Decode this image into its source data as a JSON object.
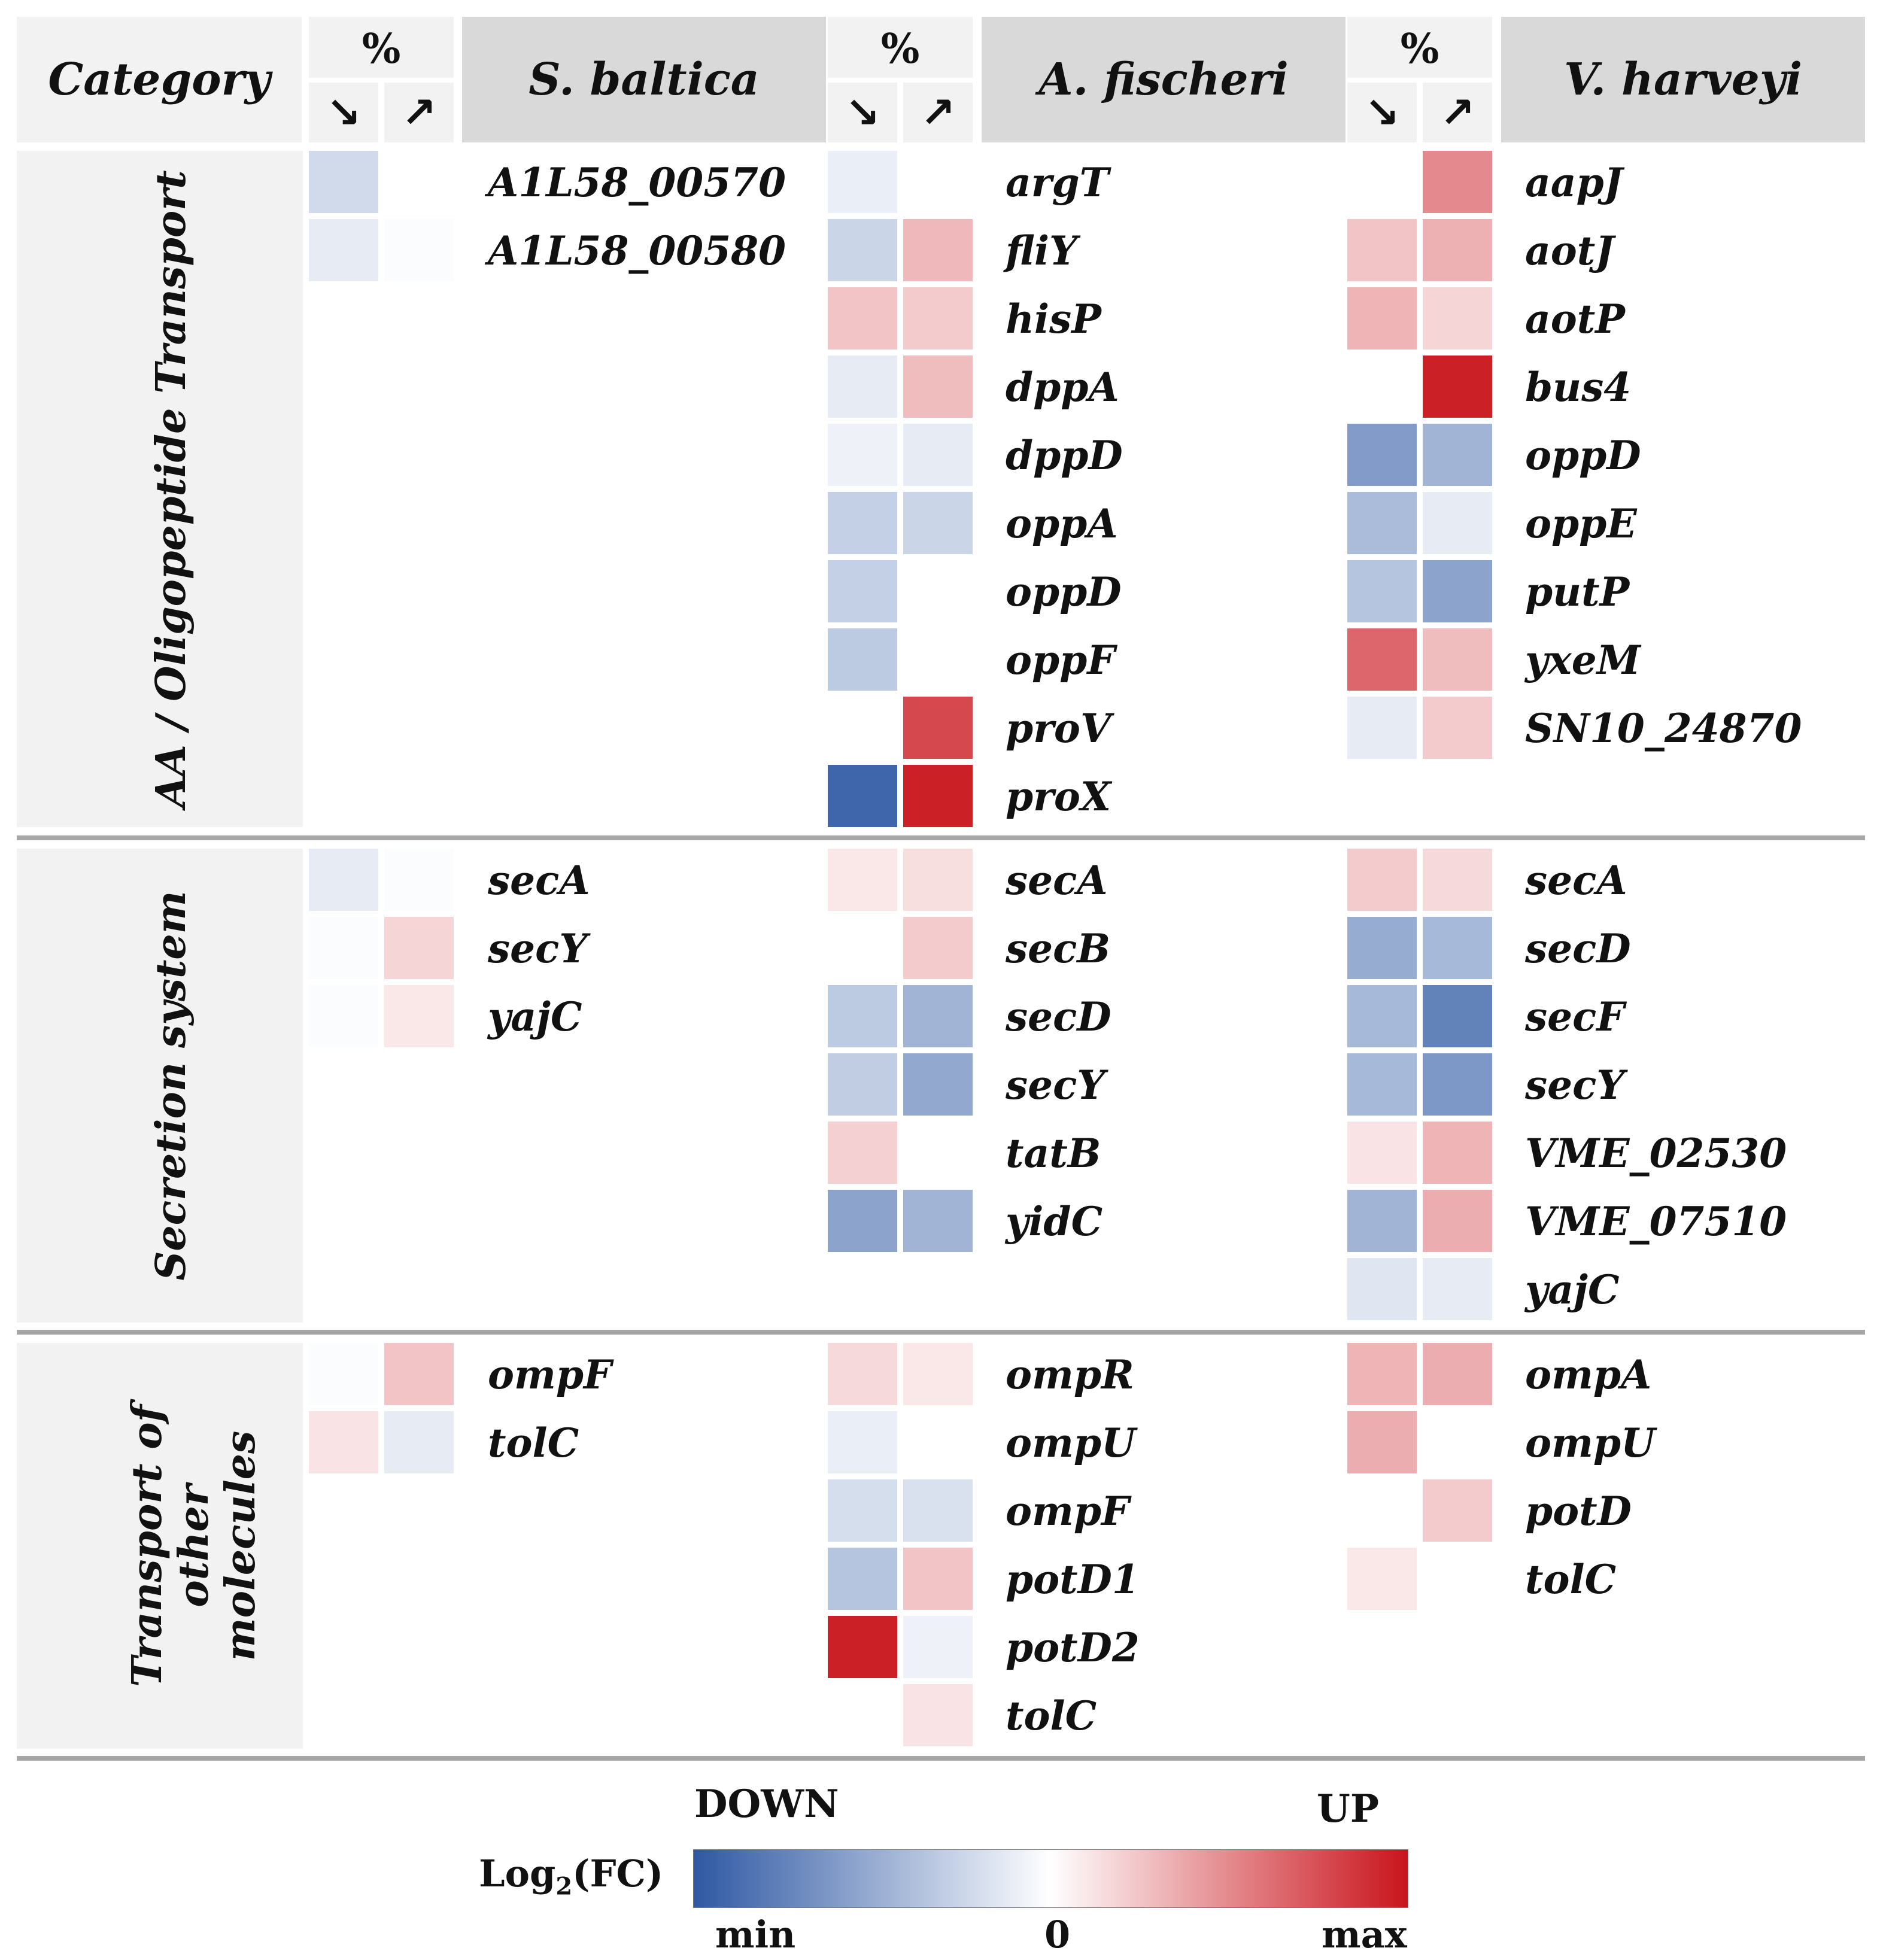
{
  "header": {
    "category": "Category",
    "pct": "%",
    "down_arrow": "↘",
    "up_arrow": "↗",
    "species": [
      "S. baltica",
      "A. fischeri",
      "V. harveyi"
    ]
  },
  "colors": {
    "down_max": "#2e58a3",
    "zero": "#ffffff",
    "up_max": "#c9141c",
    "header_species_bg": "#d9d9d9",
    "panel_bg": "#f2f2f2",
    "separator": "#a6a6a6"
  },
  "legend": {
    "title_prefix": "Log",
    "title_sub": "2",
    "title_suffix": "(FC)",
    "down": "DOWN",
    "up": "UP",
    "min": "min",
    "zero": "0",
    "max": "max"
  },
  "chart_data": {
    "type": "heatmap",
    "value_scale": "normalized log2 fold change, -1 = min (down), 0 = no change, 1 = max (up)",
    "columns_per_species": [
      "↘",
      "↗"
    ],
    "categories": [
      {
        "name": "AA / Oligopeptide Transport",
        "species": [
          {
            "name": "S. baltica",
            "genes": [
              {
                "gene": "A1L58_00570",
                "down": -0.22,
                "up": 0.0
              },
              {
                "gene": "A1L58_00580",
                "down": -0.12,
                "up": -0.02
              }
            ]
          },
          {
            "name": "A. fischeri",
            "genes": [
              {
                "gene": "argT",
                "down": -0.1,
                "up": 0.0
              },
              {
                "gene": "fliY",
                "down": -0.25,
                "up": 0.3
              },
              {
                "gene": "hisP",
                "down": 0.25,
                "up": 0.22
              },
              {
                "gene": "dppA",
                "down": -0.12,
                "up": 0.28
              },
              {
                "gene": "dppD",
                "down": -0.08,
                "up": -0.12
              },
              {
                "gene": "oppA",
                "down": -0.28,
                "up": -0.25
              },
              {
                "gene": "oppD",
                "down": -0.28,
                "up": 0.0
              },
              {
                "gene": "oppF",
                "down": -0.32,
                "up": 0.0
              },
              {
                "gene": "proV",
                "down": 0.0,
                "up": 0.78
              },
              {
                "gene": "proX",
                "down": -0.92,
                "up": 0.95
              }
            ]
          },
          {
            "name": "V. harveyi",
            "genes": [
              {
                "gene": "aapJ",
                "down": 0.0,
                "up": 0.5
              },
              {
                "gene": "aotJ",
                "down": 0.25,
                "up": 0.33
              },
              {
                "gene": "aotP",
                "down": 0.32,
                "up": 0.18
              },
              {
                "gene": "bus4",
                "down": 0.0,
                "up": 0.95
              },
              {
                "gene": "oppD",
                "down": -0.6,
                "up": -0.45
              },
              {
                "gene": "oppE",
                "down": -0.4,
                "up": -0.12
              },
              {
                "gene": "putP",
                "down": -0.35,
                "up": -0.55
              },
              {
                "gene": "yxeM",
                "down": 0.65,
                "up": 0.28
              },
              {
                "gene": "SN10_24870",
                "down": -0.12,
                "up": 0.22
              }
            ]
          }
        ]
      },
      {
        "name": "Secretion system",
        "species": [
          {
            "name": "S. baltica",
            "genes": [
              {
                "gene": "secA",
                "down": -0.12,
                "up": -0.02
              },
              {
                "gene": "secY",
                "down": -0.02,
                "up": 0.18
              },
              {
                "gene": "yajC",
                "down": -0.02,
                "up": 0.1
              }
            ]
          },
          {
            "name": "A. fischeri",
            "genes": [
              {
                "gene": "secA",
                "down": 0.1,
                "up": 0.14
              },
              {
                "gene": "secB",
                "down": 0.0,
                "up": 0.22
              },
              {
                "gene": "secD",
                "down": -0.32,
                "up": -0.45
              },
              {
                "gene": "secY",
                "down": -0.3,
                "up": -0.52
              },
              {
                "gene": "tatB",
                "down": 0.2,
                "up": 0.0
              },
              {
                "gene": "yidC",
                "down": -0.55,
                "up": -0.45
              }
            ]
          },
          {
            "name": "V. harveyi",
            "genes": [
              {
                "gene": "secA",
                "down": 0.22,
                "up": 0.16
              },
              {
                "gene": "secD",
                "down": -0.5,
                "up": -0.42
              },
              {
                "gene": "secF",
                "down": -0.42,
                "up": -0.75
              },
              {
                "gene": "secY",
                "down": -0.42,
                "up": -0.62
              },
              {
                "gene": "VME_02530",
                "down": 0.12,
                "up": 0.32
              },
              {
                "gene": "VME_07510",
                "down": -0.45,
                "up": 0.35
              },
              {
                "gene": "yajC",
                "down": -0.15,
                "up": -0.12
              }
            ]
          }
        ]
      },
      {
        "name": "Transport of other molecules",
        "species": [
          {
            "name": "S. baltica",
            "genes": [
              {
                "gene": "ompF",
                "down": -0.02,
                "up": 0.25
              },
              {
                "gene": "tolC",
                "down": 0.12,
                "up": -0.12
              }
            ]
          },
          {
            "name": "A. fischeri",
            "genes": [
              {
                "gene": "ompR",
                "down": 0.16,
                "up": 0.1
              },
              {
                "gene": "ompU",
                "down": -0.1,
                "up": 0.0
              },
              {
                "gene": "ompF",
                "down": -0.2,
                "up": -0.18
              },
              {
                "gene": "potD1",
                "down": -0.35,
                "up": 0.25
              },
              {
                "gene": "potD2",
                "down": 0.95,
                "up": -0.08
              },
              {
                "gene": "tolC",
                "down": 0.0,
                "up": 0.12
              }
            ]
          },
          {
            "name": "V. harveyi",
            "genes": [
              {
                "gene": "ompA",
                "down": 0.32,
                "up": 0.35
              },
              {
                "gene": "ompU",
                "down": 0.35,
                "up": 0.0
              },
              {
                "gene": "potD",
                "down": 0.0,
                "up": 0.22
              },
              {
                "gene": "tolC",
                "down": 0.1,
                "up": 0.0
              }
            ]
          }
        ]
      }
    ]
  }
}
